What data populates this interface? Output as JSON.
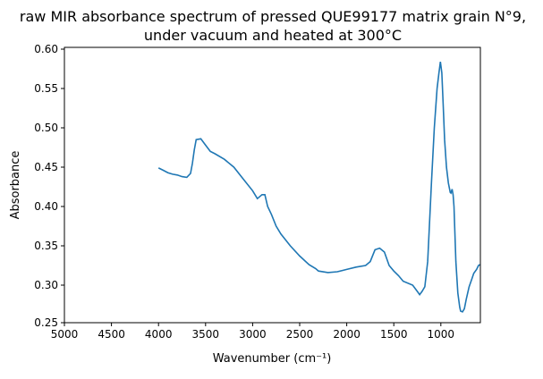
{
  "chart_data": {
    "type": "line",
    "title_line1": "raw MIR absorbance spectrum of pressed QUE99177 matrix grain N°9,",
    "title_line2": "under vacuum and heated at 300°C",
    "xlabel": "Wavenumber (cm⁻¹)",
    "ylabel": "Absorbance",
    "xlim": [
      5000,
      580
    ],
    "ylim": [
      0.25,
      0.6
    ],
    "x_reversed": true,
    "grid": false,
    "color": "#1f77b4",
    "xticks": [
      5000,
      4500,
      4000,
      3500,
      3000,
      2500,
      2000,
      1500,
      1000
    ],
    "xtick_labels": [
      "5000",
      "4500",
      "4000",
      "3500",
      "3000",
      "2500",
      "2000",
      "1500",
      "1000"
    ],
    "yticks": [
      0.25,
      0.3,
      0.35,
      0.4,
      0.45,
      0.5,
      0.55,
      0.6
    ],
    "ytick_labels": [
      "0.25",
      "0.30",
      "0.35",
      "0.40",
      "0.45",
      "0.50",
      "0.55",
      "0.60"
    ],
    "x": [
      4000,
      3950,
      3900,
      3850,
      3800,
      3750,
      3700,
      3660,
      3640,
      3620,
      3600,
      3550,
      3500,
      3450,
      3400,
      3300,
      3200,
      3100,
      3000,
      2950,
      2900,
      2870,
      2840,
      2800,
      2750,
      2700,
      2600,
      2500,
      2400,
      2330,
      2300,
      2200,
      2100,
      2000,
      1900,
      1800,
      1750,
      1700,
      1650,
      1600,
      1550,
      1500,
      1450,
      1400,
      1300,
      1250,
      1225,
      1200,
      1170,
      1140,
      1100,
      1070,
      1040,
      1020,
      1005,
      990,
      975,
      960,
      940,
      920,
      900,
      893,
      880,
      870,
      860,
      840,
      820,
      800,
      790,
      770,
      750,
      730,
      700,
      670,
      650,
      620,
      600,
      585
    ],
    "y": [
      0.449,
      0.446,
      0.443,
      0.441,
      0.44,
      0.438,
      0.437,
      0.442,
      0.455,
      0.472,
      0.485,
      0.486,
      0.478,
      0.47,
      0.467,
      0.46,
      0.45,
      0.435,
      0.42,
      0.41,
      0.415,
      0.415,
      0.4,
      0.39,
      0.375,
      0.365,
      0.35,
      0.337,
      0.326,
      0.321,
      0.318,
      0.316,
      0.317,
      0.32,
      0.323,
      0.325,
      0.33,
      0.345,
      0.347,
      0.342,
      0.325,
      0.318,
      0.312,
      0.305,
      0.3,
      0.292,
      0.288,
      0.292,
      0.298,
      0.33,
      0.43,
      0.5,
      0.55,
      0.57,
      0.584,
      0.57,
      0.53,
      0.485,
      0.45,
      0.43,
      0.418,
      0.417,
      0.422,
      0.415,
      0.4,
      0.33,
      0.29,
      0.272,
      0.267,
      0.266,
      0.27,
      0.282,
      0.298,
      0.308,
      0.315,
      0.32,
      0.325,
      0.326
    ]
  }
}
